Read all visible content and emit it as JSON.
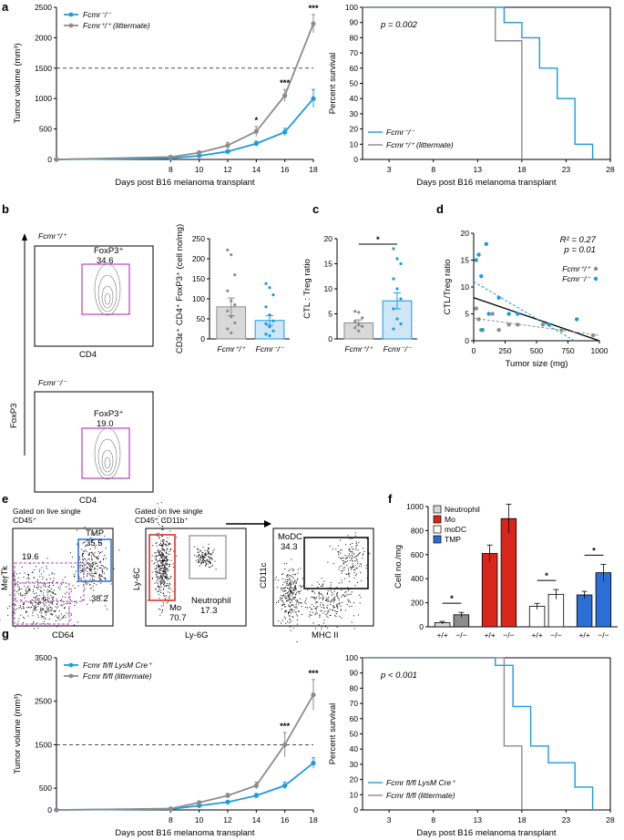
{
  "colors": {
    "blue": "#1b9be0",
    "grey": "#8c8c8c",
    "red": "#d9261c",
    "tmp": "#2b6fd6",
    "mag": "#c03cc0",
    "black": "#000000",
    "lightblue": "#cfe6f7",
    "lightgrey": "#d9d9d9"
  },
  "panel_letters": {
    "a": "a",
    "b": "b",
    "c": "c",
    "d": "d",
    "e": "e",
    "f": "f",
    "g": "g"
  },
  "chart_data": [
    {
      "id": "a_left",
      "type": "line",
      "ylabel": "Tumor volume (mm³)",
      "xlabel": "Days post B16 melanoma transplant",
      "x": [
        0,
        8,
        10,
        12,
        14,
        16,
        18
      ],
      "xticks": [
        8,
        10,
        12,
        14,
        16,
        18
      ],
      "xlim": [
        0,
        18
      ],
      "ylim": [
        0,
        2500
      ],
      "yticks": [
        0,
        500,
        1000,
        1500,
        2000,
        2500
      ],
      "threshold": 1500,
      "series": [
        {
          "name": "Fcmr⁻/⁻",
          "color": "#1b9be0",
          "values": [
            0,
            20,
            60,
            130,
            260,
            450,
            1000
          ],
          "err": [
            0,
            10,
            20,
            30,
            40,
            60,
            150
          ]
        },
        {
          "name": "Fcmr⁺/⁺ (littermate)",
          "color": "#8c8c8c",
          "values": [
            0,
            40,
            110,
            230,
            460,
            1050,
            2230
          ],
          "err": [
            0,
            10,
            30,
            50,
            80,
            100,
            150
          ]
        }
      ],
      "stars": [
        {
          "x": 14,
          "label": "*"
        },
        {
          "x": 16,
          "label": "***"
        },
        {
          "x": 18,
          "label": "***"
        }
      ],
      "legend": [
        "Fcmr⁻/⁻",
        "Fcmr⁺/⁺ (littermate)"
      ]
    },
    {
      "id": "a_right",
      "type": "line",
      "ylabel": "Percent survival",
      "xlabel": "Days post B16 melanoma transplant",
      "xticks": [
        3,
        8,
        13,
        18,
        23,
        28
      ],
      "xlim": [
        0,
        28
      ],
      "ylim": [
        0,
        100
      ],
      "yticks": [
        0,
        10,
        20,
        30,
        40,
        50,
        60,
        70,
        80,
        90,
        100
      ],
      "annotation": "p = 0.002",
      "series": [
        {
          "name": "Fcmr⁻/⁻",
          "color": "#1b9be0",
          "steps": [
            [
              0,
              100
            ],
            [
              16,
              100
            ],
            [
              16,
              90
            ],
            [
              18,
              90
            ],
            [
              18,
              80
            ],
            [
              20,
              80
            ],
            [
              20,
              60
            ],
            [
              22,
              60
            ],
            [
              22,
              40
            ],
            [
              24,
              40
            ],
            [
              24,
              10
            ],
            [
              26,
              10
            ],
            [
              26,
              0
            ]
          ]
        },
        {
          "name": "Fcmr⁺/⁺ (littermate)",
          "color": "#8c8c8c",
          "steps": [
            [
              0,
              100
            ],
            [
              15,
              100
            ],
            [
              15,
              78
            ],
            [
              18,
              78
            ],
            [
              18,
              0
            ]
          ]
        }
      ],
      "legend": [
        "Fcmr⁻/⁻",
        "Fcmr⁺/⁺ (littermate)"
      ]
    },
    {
      "id": "b_bar",
      "type": "bar",
      "ylabel": "CD3ε⁺ CD4⁺ FoxP3⁺ (cell no/mg)",
      "categories": [
        "Fcmr⁺/⁺",
        "Fcmr⁻/⁻"
      ],
      "values": [
        80,
        46
      ],
      "err": [
        22,
        12
      ],
      "ylim": [
        0,
        250
      ],
      "yticks": [
        0,
        50,
        100,
        150,
        200,
        250
      ],
      "points": [
        [
          222,
          210,
          160,
          120,
          95,
          85,
          70,
          55,
          40,
          25,
          15
        ],
        [
          138,
          128,
          110,
          80,
          60,
          45,
          38,
          30,
          20,
          12,
          8
        ]
      ]
    },
    {
      "id": "c_bar",
      "type": "bar",
      "ylabel": "CTL : Treg ratio",
      "categories": [
        "Fcmr⁺/⁺",
        "Fcmr⁻/⁻"
      ],
      "values": [
        3.2,
        7.6
      ],
      "err": [
        0.6,
        1.6
      ],
      "ylim": [
        0,
        20
      ],
      "yticks": [
        0,
        5,
        10,
        15,
        20
      ],
      "stars": [
        "*"
      ],
      "points": [
        [
          5.5,
          5.3,
          4.2,
          3.5,
          3.0,
          2.5,
          2.2,
          1.6
        ],
        [
          18,
          16,
          15,
          12,
          10,
          8,
          6,
          4,
          3,
          2
        ]
      ]
    },
    {
      "id": "d_scatter",
      "type": "scatter",
      "ylabel": "CTL/Treg ratio",
      "xlabel": "Tumor size (mg)",
      "xticks": [
        0,
        250,
        500,
        750,
        1000
      ],
      "xlim": [
        0,
        1000
      ],
      "ylim": [
        0,
        20
      ],
      "yticks": [
        0,
        5,
        10,
        15,
        20
      ],
      "stats": {
        "r2": "R² = 0.27",
        "p": "p = 0.01"
      },
      "legend": [
        "Fcmr⁺/⁺",
        "Fcmr⁻/⁻"
      ],
      "series": [
        {
          "name": "Fcmr⁺/⁺",
          "color": "#8c8c8c",
          "points": [
            [
              20,
              6
            ],
            [
              40,
              4
            ],
            [
              60,
              2
            ],
            [
              150,
              5
            ],
            [
              200,
              2
            ],
            [
              280,
              3
            ],
            [
              350,
              3
            ],
            [
              550,
              3
            ],
            [
              700,
              2
            ],
            [
              950,
              1
            ]
          ]
        },
        {
          "name": "Fcmr⁻/⁻",
          "color": "#1b9be0",
          "points": [
            [
              20,
              15
            ],
            [
              40,
              16
            ],
            [
              60,
              12
            ],
            [
              70,
              2
            ],
            [
              100,
              18
            ],
            [
              120,
              5
            ],
            [
              200,
              8
            ],
            [
              280,
              5
            ],
            [
              350,
              5
            ],
            [
              600,
              3
            ],
            [
              820,
              4
            ]
          ]
        }
      ],
      "fits": [
        {
          "color": "#000",
          "from": [
            0,
            8
          ],
          "to": [
            1000,
            0
          ]
        },
        {
          "color": "#1b9be0",
          "from": [
            0,
            11
          ],
          "to": [
            800,
            0
          ]
        },
        {
          "color": "#8c8c8c",
          "from": [
            0,
            4.2
          ],
          "to": [
            1000,
            1
          ]
        }
      ]
    },
    {
      "id": "f_bar",
      "type": "bar",
      "ylabel": "Cell no./mg",
      "ylim": [
        0,
        1000
      ],
      "yticks": [
        0,
        200,
        400,
        600,
        800,
        1000
      ],
      "groups": [
        "Neutrophil",
        "Mo",
        "moDC",
        "TMP"
      ],
      "categories": [
        "+/+",
        "−/−"
      ],
      "series": [
        {
          "name": "Neutrophil",
          "values": [
            35,
            100
          ],
          "err": [
            10,
            20
          ]
        },
        {
          "name": "Mo",
          "values": [
            610,
            900
          ],
          "err": [
            70,
            120
          ]
        },
        {
          "name": "moDC",
          "values": [
            170,
            270
          ],
          "err": [
            25,
            40
          ]
        },
        {
          "name": "TMP",
          "values": [
            265,
            450
          ],
          "err": [
            30,
            70
          ]
        }
      ],
      "stars": [
        "*",
        "",
        "*",
        "*"
      ],
      "legend": [
        "Neutrophil",
        "Mo",
        "moDC",
        "TMP"
      ]
    },
    {
      "id": "g_left",
      "type": "line",
      "ylabel": "Tumor volume (mm³)",
      "xlabel": "Days post B16 melanoma transplant",
      "xticks": [
        8,
        10,
        12,
        14,
        16,
        18
      ],
      "xlim": [
        0,
        18
      ],
      "ylim": [
        0,
        3500
      ],
      "yticks": [
        0,
        500,
        1500,
        2500,
        3500
      ],
      "threshold": 1500,
      "series": [
        {
          "name": "Fcmr fl/fl LysM Cre⁺",
          "color": "#1b9be0",
          "values": [
            0,
            20,
            100,
            180,
            330,
            560,
            1080
          ],
          "err": [
            0,
            10,
            20,
            30,
            50,
            80,
            120
          ]
        },
        {
          "name": "Fcmr fl/fl (littermate)",
          "color": "#8c8c8c",
          "values": [
            0,
            30,
            170,
            330,
            560,
            1500,
            2650
          ],
          "err": [
            0,
            10,
            30,
            50,
            80,
            280,
            350
          ]
        }
      ],
      "stars": [
        {
          "x": 16,
          "label": "***"
        },
        {
          "x": 18,
          "label": "***"
        }
      ],
      "legend": [
        "Fcmr fl/fl LysM Cre⁺",
        "Fcmr fl/fl (littermate)"
      ]
    },
    {
      "id": "g_right",
      "type": "line",
      "ylabel": "Percent survival",
      "xlabel": "Days post B16 melanoma transplant",
      "xticks": [
        3,
        8,
        13,
        18,
        23,
        28
      ],
      "xlim": [
        0,
        28
      ],
      "ylim": [
        0,
        100
      ],
      "yticks": [
        0,
        10,
        20,
        30,
        40,
        50,
        60,
        70,
        80,
        90,
        100
      ],
      "annotation": "p < 0.001",
      "series": [
        {
          "name": "Fcmr fl/fl LysM Cre⁺",
          "color": "#1b9be0",
          "steps": [
            [
              0,
              100
            ],
            [
              15,
              100
            ],
            [
              15,
              95
            ],
            [
              17,
              95
            ],
            [
              17,
              68
            ],
            [
              19,
              68
            ],
            [
              19,
              42
            ],
            [
              21,
              42
            ],
            [
              21,
              31
            ],
            [
              24,
              31
            ],
            [
              24,
              15
            ],
            [
              26,
              15
            ],
            [
              26,
              0
            ]
          ]
        },
        {
          "name": "Fcmr fl/fl (littermate)",
          "color": "#8c8c8c",
          "steps": [
            [
              0,
              100
            ],
            [
              16,
              100
            ],
            [
              16,
              42
            ],
            [
              18,
              42
            ],
            [
              18,
              0
            ]
          ]
        }
      ],
      "legend": [
        "Fcmr fl/fl LysM Cre⁺",
        "Fcmr fl/fl (littermate)"
      ]
    }
  ],
  "b_flow": {
    "top_genotype": "Fcmr⁺/⁺",
    "bottom_genotype": "Fcmr⁻/⁻",
    "gate_label": "FoxP3⁺",
    "top_value": "34.6",
    "bottom_value": "19.0",
    "x_label": "CD4",
    "y_label": "FoxP3"
  },
  "e_flow": {
    "gate1": "Gated on live single",
    "gate1b": "CD45⁺",
    "gate2": "Gated on live single",
    "gate2b": "CD45⁺ CD11b⁺",
    "p1_x": "CD64",
    "p1_y": "MerTk",
    "tmp_label": "TMP",
    "tmp_value": "35.5",
    "left_value": "19.6",
    "bottom_value": "38.2",
    "p2_x": "Ly-6G",
    "p2_y": "Ly-6C",
    "mo_label": "Mo",
    "mo_value": "70.7",
    "neut_label": "Neutrophil",
    "neut_value": "17.3",
    "p3_x": "MHC II",
    "p3_y": "CD11c",
    "modc_label": "MoDC",
    "modc_value": "34.3"
  }
}
